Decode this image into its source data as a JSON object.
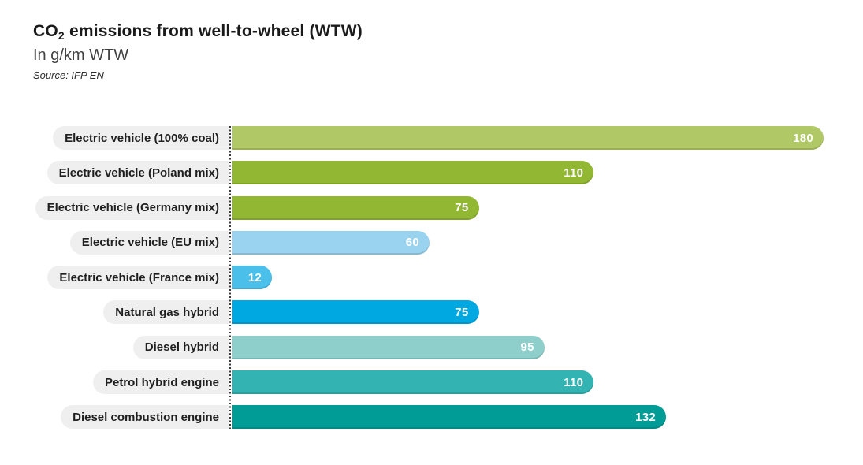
{
  "header": {
    "title_co": "CO",
    "title_sub": "2",
    "title_rest": " emissions from well-to-wheel (WTW)",
    "subtitle": "In g/km WTW",
    "source": "Source: IFP EN"
  },
  "chart_data": {
    "type": "bar",
    "orientation": "horizontal",
    "title": "CO2 emissions from well-to-wheel (WTW)",
    "subtitle": "In g/km WTW",
    "source": "Source: IFP EN",
    "unit": "g/km WTW",
    "xlim": [
      0,
      180
    ],
    "grid": false,
    "legend": false,
    "categories": [
      "Electric vehicle (100% coal)",
      "Electric vehicle (Poland mix)",
      "Electric vehicle (Germany mix)",
      "Electric vehicle (EU mix)",
      "Electric vehicle (France mix)",
      "Natural gas hybrid",
      "Diesel hybrid",
      "Petrol hybrid engine",
      "Diesel combustion engine"
    ],
    "values": [
      180,
      110,
      75,
      60,
      12,
      75,
      95,
      110,
      132
    ],
    "bar_colors": [
      "#b1c867",
      "#92b733",
      "#92b733",
      "#9ad3f0",
      "#4abfe9",
      "#00a8e1",
      "#8ecfcb",
      "#33b3b1",
      "#009c95"
    ],
    "value_label_color": "#ffffff",
    "label_pill_color": "#efefef",
    "axis_line_style": "dotted"
  }
}
